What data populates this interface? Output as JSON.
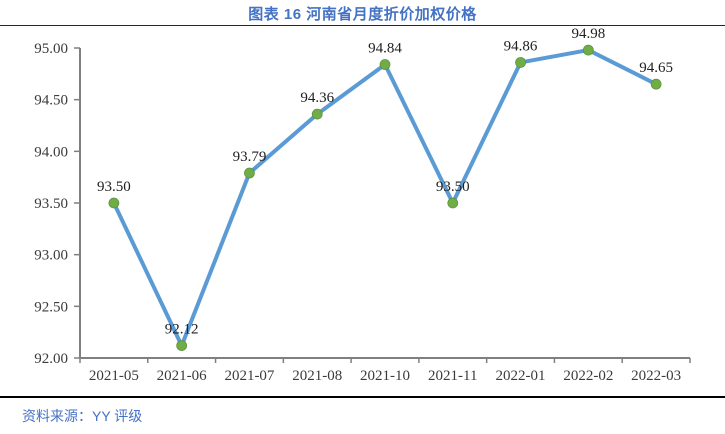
{
  "header": {
    "title": "图表 16 河南省月度折价加权价格"
  },
  "footer": {
    "source_label": "资料来源：YY 评级"
  },
  "colors": {
    "title_text": "#4472C4",
    "source_text": "#4472C4",
    "line": "#5B9BD5",
    "marker_fill": "#70AD47",
    "marker_edge": "#5d9138",
    "axis": "#808080",
    "tick_label": "#3b3b3b",
    "data_label": "#1f1f1f",
    "top_rule": "#262626",
    "bottom_rule": "#000000"
  },
  "chart_data": {
    "type": "line",
    "title": "图表 16 河南省月度折价加权价格",
    "categories": [
      "2021-05",
      "2021-06",
      "2021-07",
      "2021-08",
      "2021-10",
      "2021-11",
      "2022-01",
      "2022-02",
      "2022-03"
    ],
    "values": [
      93.5,
      92.12,
      93.79,
      94.36,
      94.84,
      93.5,
      94.86,
      94.98,
      94.65
    ],
    "data_labels": [
      "93.50",
      "92.12",
      "93.79",
      "94.36",
      "94.84",
      "93.50",
      "94.86",
      "94.98",
      "94.65"
    ],
    "xlabel": "",
    "ylabel": "",
    "ylim": [
      92.0,
      95.0
    ],
    "ytick_step": 0.5,
    "ytick_labels": [
      "92.00",
      "92.50",
      "93.00",
      "93.50",
      "94.00",
      "94.50",
      "95.00"
    ],
    "grid": false,
    "legend": "none",
    "marker": "circle"
  }
}
